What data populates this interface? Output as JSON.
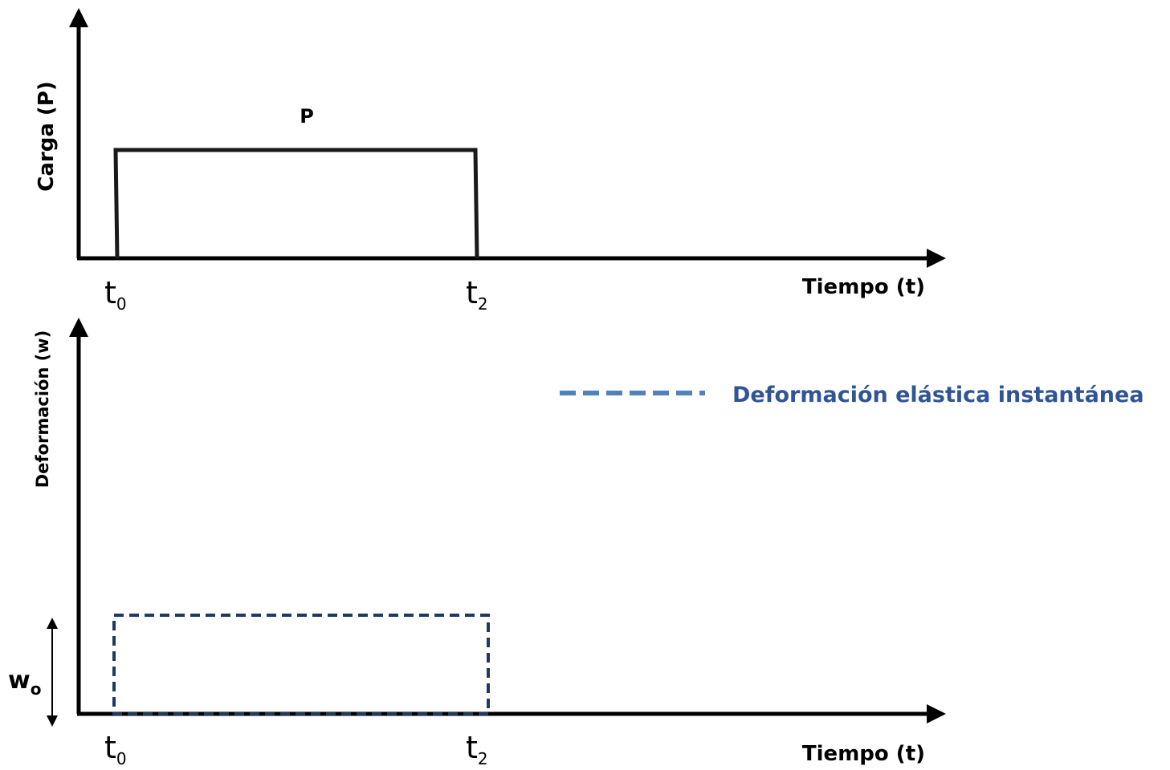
{
  "top_chart": {
    "y_axis_label": "Carga (P)",
    "x_axis_label": "Tiempo (t)",
    "load_label": "P",
    "tick_start": {
      "base": "t",
      "sub": "0"
    },
    "tick_end": {
      "base": "t",
      "sub": "2"
    }
  },
  "bottom_chart": {
    "y_axis_label": "Deformación (w)",
    "x_axis_label": "Tiempo (t)",
    "w_label": {
      "base": "w",
      "sub": "o"
    },
    "tick_start": {
      "base": "t",
      "sub": "0"
    },
    "tick_end": {
      "base": "t",
      "sub": "2"
    },
    "legend": {
      "label": "Deformación elástica instantánea",
      "line_color": "#4f81bd",
      "text_color": "#2f5597"
    },
    "dashed_rect_color": "#1f3864"
  },
  "colors": {
    "axis": "#000000",
    "load_line": "#1a1a1a"
  }
}
